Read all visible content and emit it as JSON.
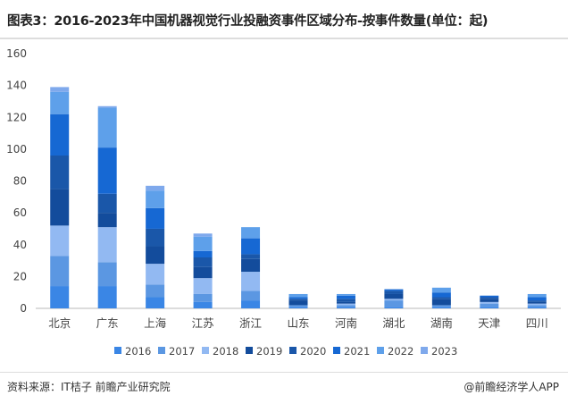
{
  "title": "图表3：2016-2023年中国机器视觉行业投融资事件区域分布-按事件数量(单位：起)",
  "source": "资料来源：IT桔子 前瞻产业研究院",
  "credit": "@前瞻经济学人APP",
  "chart_data": {
    "type": "bar",
    "stacked": true,
    "title": "2016-2023年中国机器视觉行业投融资事件区域分布-按事件数量(单位：起)",
    "categories": [
      "北京",
      "广东",
      "上海",
      "江苏",
      "浙江",
      "山东",
      "河南",
      "湖北",
      "湖南",
      "天津",
      "四川"
    ],
    "ylim": [
      0,
      160
    ],
    "yticks": [
      0,
      20,
      40,
      60,
      80,
      100,
      120,
      140,
      160
    ],
    "legend_position": "bottom",
    "series": [
      {
        "name": "2016",
        "color": "#3a86e5",
        "values": [
          14,
          14,
          7,
          4,
          5,
          1,
          1,
          1,
          1,
          1,
          1
        ]
      },
      {
        "name": "2017",
        "color": "#5b97e2",
        "values": [
          19,
          15,
          8,
          5,
          6,
          1,
          1,
          4,
          1,
          2,
          1
        ]
      },
      {
        "name": "2018",
        "color": "#92b9f2",
        "values": [
          19,
          22,
          13,
          10,
          12,
          0,
          1,
          1,
          0,
          1,
          1
        ]
      },
      {
        "name": "2019",
        "color": "#134c9c",
        "values": [
          23,
          9,
          11,
          7,
          8,
          3,
          1,
          3,
          4,
          2,
          1
        ]
      },
      {
        "name": "2020",
        "color": "#1a57a9",
        "values": [
          21,
          12,
          11,
          6,
          3,
          1,
          2,
          2,
          1,
          1,
          1
        ]
      },
      {
        "name": "2021",
        "color": "#1668d3",
        "values": [
          26,
          29,
          13,
          4,
          10,
          1,
          2,
          1,
          3,
          1,
          2
        ]
      },
      {
        "name": "2022",
        "color": "#5ea0ea",
        "values": [
          14,
          25,
          11,
          9,
          7,
          2,
          1,
          0,
          3,
          0,
          2
        ]
      },
      {
        "name": "2023",
        "color": "#7fa9ec",
        "values": [
          3,
          1,
          3,
          2,
          0,
          0,
          0,
          0,
          0,
          0,
          0
        ]
      }
    ]
  }
}
